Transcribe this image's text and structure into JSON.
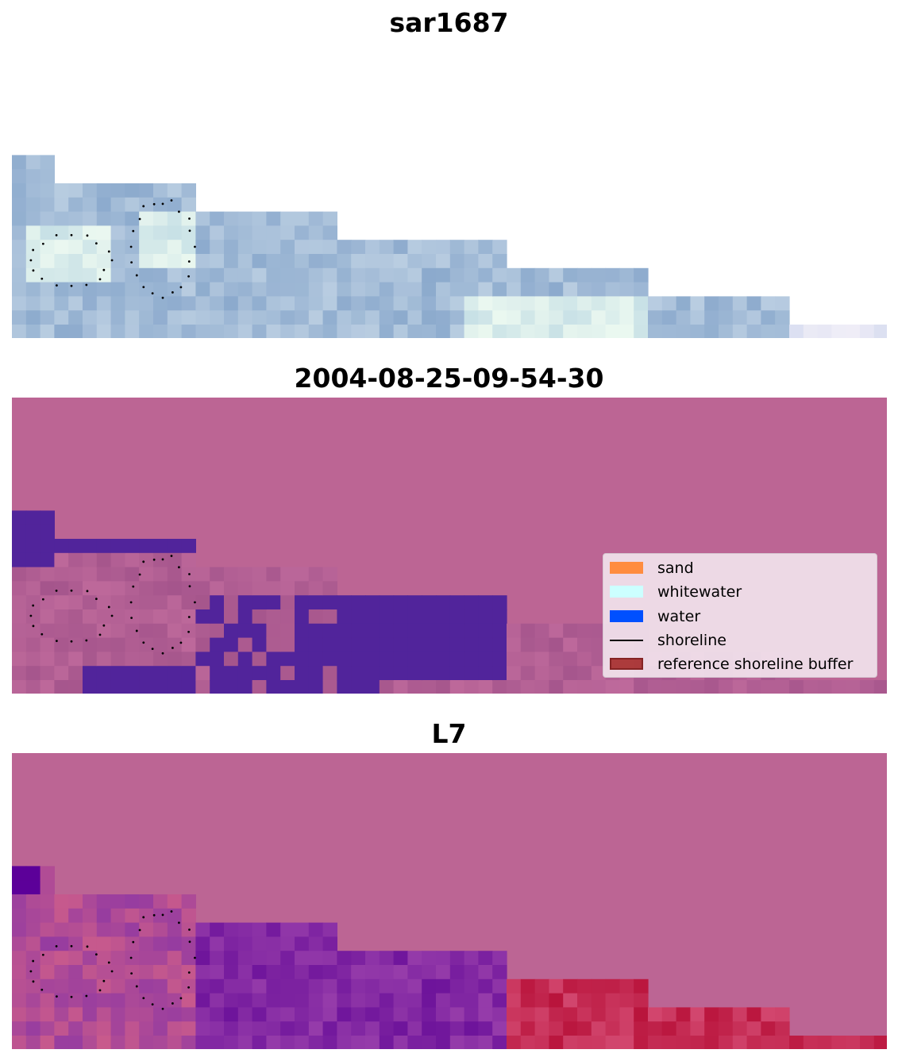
{
  "panels": [
    {
      "title": "sar1687",
      "style": "rgb"
    },
    {
      "title": "2004-08-25-09-54-30",
      "style": "classified"
    },
    {
      "title": "L7",
      "style": "index"
    }
  ],
  "legend": {
    "items": [
      {
        "label": "sand",
        "color": "#ff8c3f",
        "kind": "patch"
      },
      {
        "label": "whitewater",
        "color": "#ccffff",
        "kind": "patch"
      },
      {
        "label": "water",
        "color": "#0050ff",
        "kind": "patch"
      },
      {
        "label": "shoreline",
        "color": "#000000",
        "kind": "line"
      },
      {
        "label": "reference shoreline buffer",
        "color": "#a52a2a",
        "kind": "patch"
      }
    ]
  },
  "colors": {
    "background_land": "#bc6594",
    "water_class": "#51249b",
    "shoreline_points": "#000000"
  }
}
